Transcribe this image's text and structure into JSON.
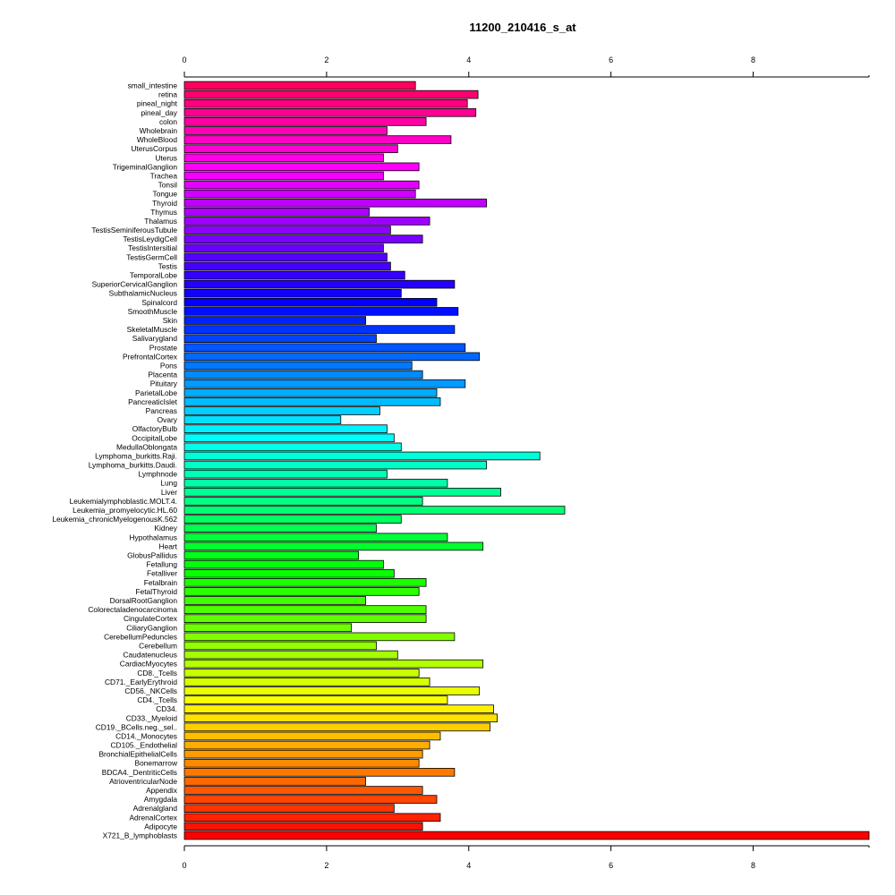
{
  "chart_data": {
    "type": "bar",
    "orientation": "horizontal",
    "title": "11200_210416_s_at",
    "xlabel": "",
    "ylabel": "",
    "xlim": [
      0,
      9.63
    ],
    "xticks": [
      "0",
      "2",
      "4",
      "6",
      "8"
    ],
    "grid": false,
    "legend": "none",
    "categories": [
      "small_intestine",
      "retina",
      "pineal_night",
      "pineal_day",
      "colon",
      "Wholebrain",
      "WholeBlood",
      "UterusCorpus",
      "Uterus",
      "TrigeminalGanglion",
      "Trachea",
      "Tonsil",
      "Tongue",
      "Thyroid",
      "Thymus",
      "Thalamus",
      "TestisSeminiferousTubule",
      "TestisLeydigCell",
      "TestisIntersitial",
      "TestisGermCell",
      "Testis",
      "TemporalLobe",
      "SuperiorCervicalGanglion",
      "SubthalamicNucleus",
      "Spinalcord",
      "SmoothMuscle",
      "Skin",
      "SkeletalMuscle",
      "Salivarygland",
      "Prostate",
      "PrefrontalCortex",
      "Pons",
      "Placenta",
      "Pituitary",
      "ParietalLobe",
      "PancreaticIslet",
      "Pancreas",
      "Ovary",
      "OlfactoryBulb",
      "OccipitalLobe",
      "MedullaOblongata",
      "Lymphoma_burkitts.Raji.",
      "Lymphoma_burkitts.Daudi.",
      "Lymphnode",
      "Lung",
      "Liver",
      "Leukemialymphoblastic.MOLT.4.",
      "Leukemia_promyelocytic.HL.60",
      "Leukemia_chronicMyelogenousK.562",
      "Kidney",
      "Hypothalamus",
      "Heart",
      "GlobusPallidus",
      "Fetallung",
      "Fetalliver",
      "Fetalbrain",
      "FetalThyroid",
      "DorsalRootGanglion",
      "Colorectaladenocarcinoma",
      "CingulateCortex",
      "CiliaryGanglion",
      "CerebellumPeduncles",
      "Cerebellum",
      "Caudatenucleus",
      "CardiacMyocytes",
      "CD8._Tcells",
      "CD71._EarlyErythroid",
      "CD56._NKCells",
      "CD4._Tcells",
      "CD34.",
      "CD33._Myeloid",
      "CD19._BCells.neg._sel..",
      "CD14._Monocytes",
      "CD105._Endothelial",
      "BronchialEpithelialCells",
      "Bonemarrow",
      "BDCA4._DentriticCells",
      "AtrioventricularNode",
      "Appendix",
      "Amygdala",
      "Adrenalgland",
      "AdrenalCortex",
      "Adipocyte",
      "X721_B_lymphoblasts"
    ],
    "values": [
      3.25,
      4.13,
      3.98,
      4.1,
      3.4,
      2.85,
      3.75,
      3.0,
      2.8,
      3.3,
      2.8,
      3.3,
      3.25,
      4.25,
      2.6,
      3.45,
      2.9,
      3.35,
      2.8,
      2.85,
      2.9,
      3.1,
      3.8,
      3.05,
      3.55,
      3.85,
      2.55,
      3.8,
      2.7,
      3.95,
      4.15,
      3.2,
      3.35,
      3.95,
      3.55,
      3.6,
      2.75,
      2.2,
      2.85,
      2.95,
      3.05,
      5.0,
      4.25,
      2.85,
      3.7,
      4.45,
      3.35,
      5.35,
      3.05,
      2.7,
      3.7,
      4.2,
      2.45,
      2.8,
      2.95,
      3.4,
      3.3,
      2.55,
      3.4,
      3.4,
      2.35,
      3.8,
      2.7,
      3.0,
      4.2,
      3.3,
      3.45,
      4.15,
      3.7,
      4.35,
      4.4,
      4.3,
      3.6,
      3.45,
      3.35,
      3.3,
      3.8,
      2.55,
      3.35,
      3.55,
      2.95,
      3.6,
      3.35,
      9.63
    ]
  }
}
